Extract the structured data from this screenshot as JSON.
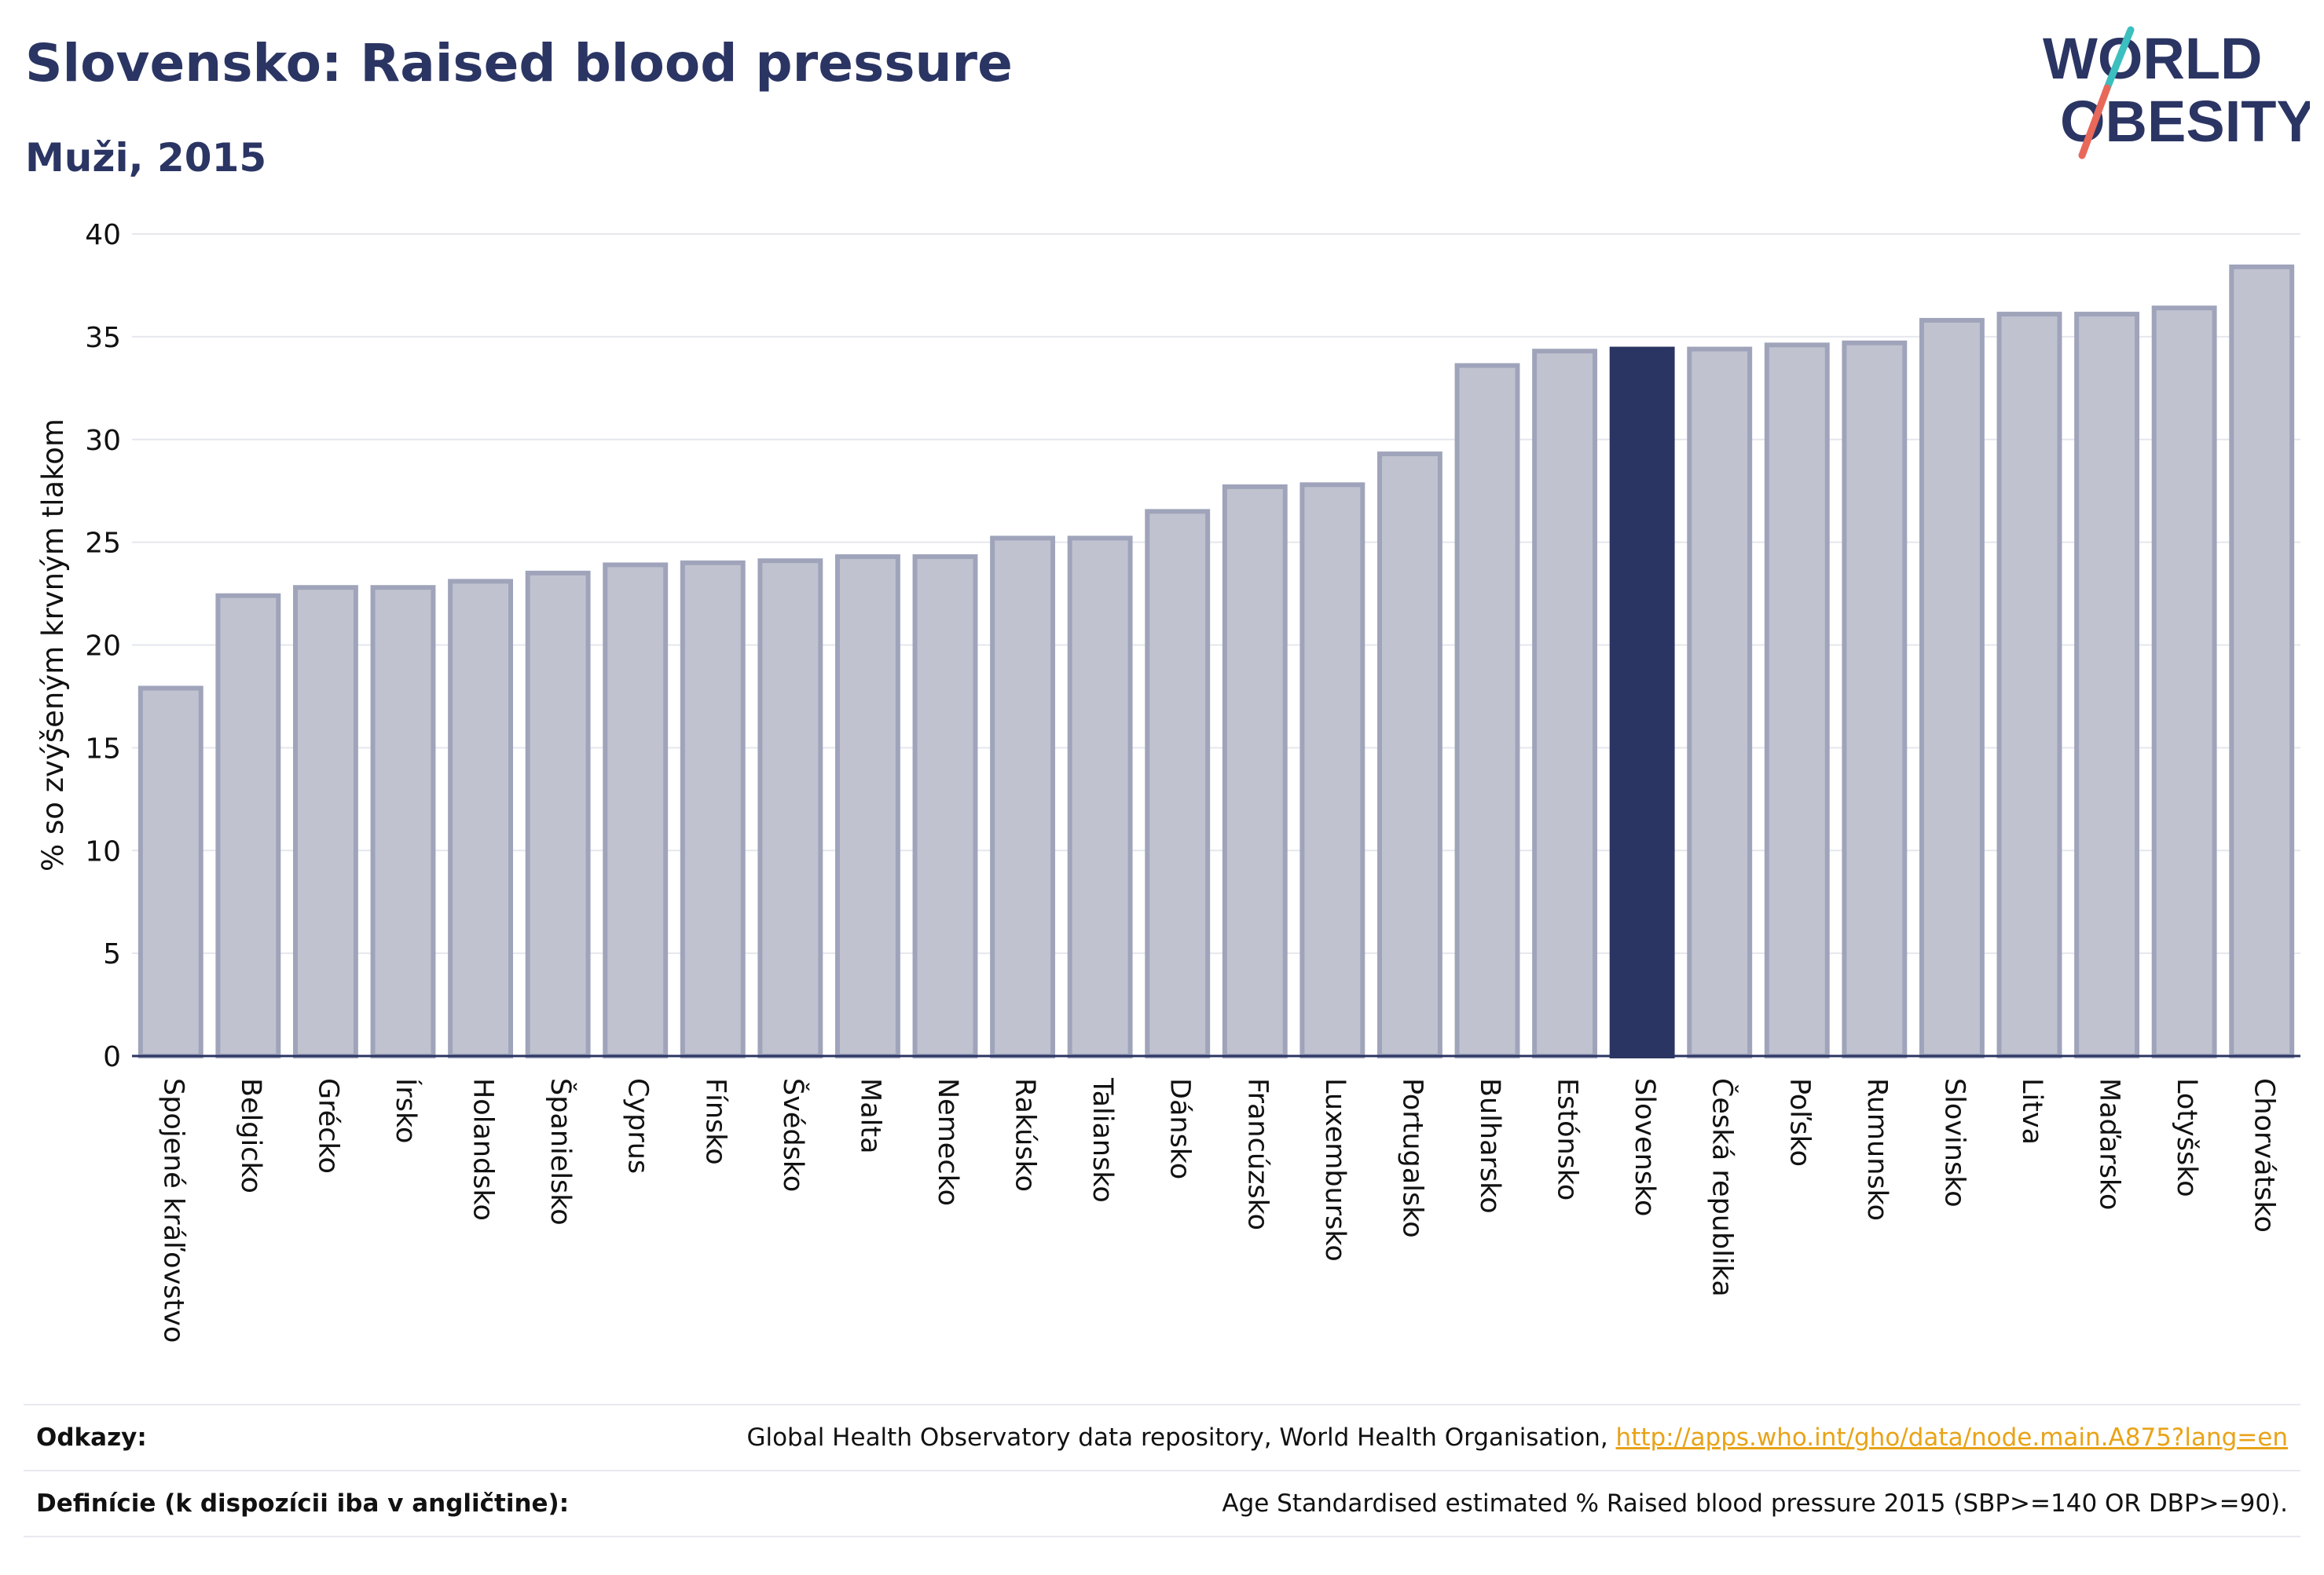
{
  "header": {
    "title": "Slovensko: Raised blood pressure",
    "subtitle": "Muži, 2015"
  },
  "logo": {
    "line1": "WORLD",
    "line2": "OBESITY",
    "colors": {
      "text": "#2b3563",
      "slash_top": "#3bbfbf",
      "slash_bottom": "#e8685a"
    }
  },
  "chart_data": {
    "type": "bar",
    "title": "",
    "xlabel": "",
    "ylabel": "% so zvýšeným krvným tlakom",
    "ylim": [
      0,
      40
    ],
    "yticks": [
      0,
      5,
      10,
      15,
      20,
      25,
      30,
      35,
      40
    ],
    "grid": true,
    "highlight": "Slovensko",
    "colors": {
      "bar": "#c0c3cf",
      "bar_border": "#9fa4bb",
      "highlight": "#2b3563",
      "grid": "#e6e7ee",
      "axis": "#2b3563"
    },
    "categories": [
      "Spojené kráľovstvo",
      "Belgicko",
      "Grécko",
      "Írsko",
      "Holandsko",
      "Španielsko",
      "Cyprus",
      "Fínsko",
      "Švédsko",
      "Malta",
      "Nemecko",
      "Rakúsko",
      "Taliansko",
      "Dánsko",
      "Francúzsko",
      "Luxembursko",
      "Portugalsko",
      "Bulharsko",
      "Estónsko",
      "Slovensko",
      "Česká republika",
      "Poľsko",
      "Rumunsko",
      "Slovinsko",
      "Litva",
      "Maďarsko",
      "Lotyšsko",
      "Chorvátsko"
    ],
    "values": [
      17.9,
      22.4,
      22.8,
      22.8,
      23.1,
      23.5,
      23.9,
      24.0,
      24.1,
      24.3,
      24.3,
      25.2,
      25.2,
      26.5,
      27.7,
      27.8,
      29.3,
      33.6,
      34.3,
      34.4,
      34.4,
      34.6,
      34.7,
      35.8,
      36.1,
      36.1,
      36.4,
      38.4
    ]
  },
  "footer": {
    "references_label": "Odkazy:",
    "references_text": "Global Health Observatory data repository, World Health Organisation, ",
    "references_link": "http://apps.who.int/gho/data/node.main.A875?lang=en",
    "definitions_label": "Definície (k dispozícii iba v angličtine):",
    "definitions_text": "Age Standardised estimated % Raised blood pressure 2015 (SBP>=140 OR DBP>=90)."
  }
}
